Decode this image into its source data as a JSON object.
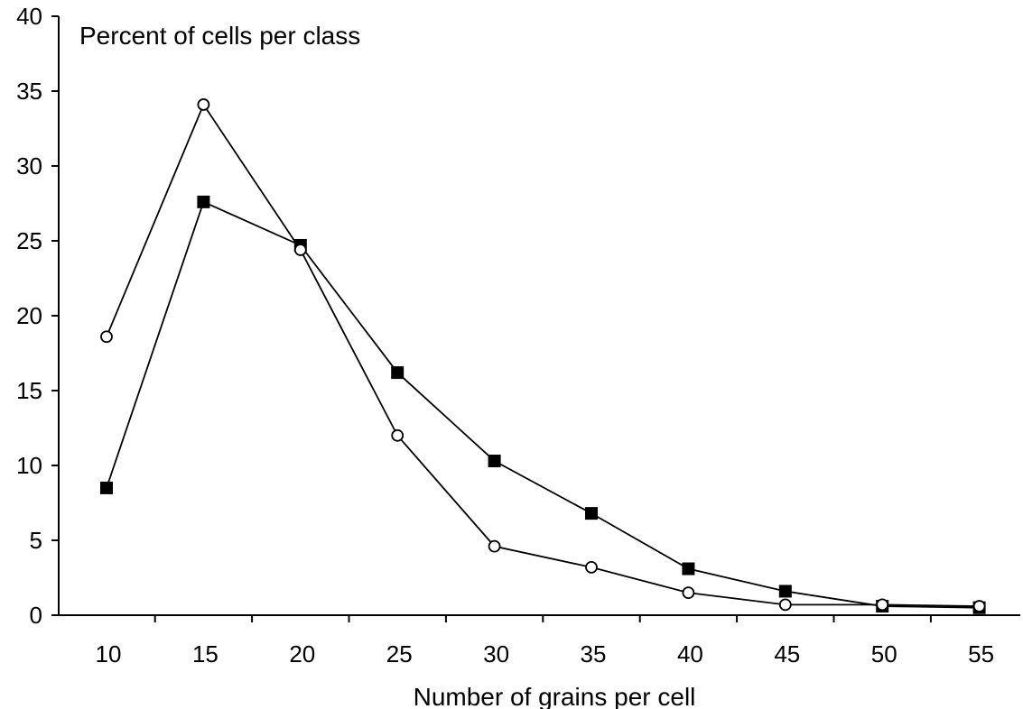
{
  "chart_data": {
    "type": "line",
    "title": "",
    "ylabel": "Percent of cells per class",
    "xlabel": "Number of grains per cell",
    "x": [
      10,
      15,
      20,
      25,
      30,
      35,
      40,
      45,
      50,
      55
    ],
    "x_tick_labels": [
      "10",
      "15",
      "20",
      "25",
      "30",
      "35",
      "40",
      "45",
      "50",
      "55"
    ],
    "y_tick_labels": [
      "0",
      "5",
      "10",
      "15",
      "20",
      "25",
      "30",
      "35",
      "40"
    ],
    "ylim": [
      0,
      40
    ],
    "grid": false,
    "legend": "none",
    "series": [
      {
        "marker": "open-circle",
        "color": "#000000",
        "values": [
          18.6,
          34.1,
          24.4,
          12.0,
          4.6,
          3.2,
          1.5,
          0.7,
          0.7,
          0.6
        ]
      },
      {
        "marker": "filled-square",
        "color": "#000000",
        "values": [
          8.5,
          27.6,
          24.7,
          16.2,
          10.3,
          6.8,
          3.1,
          1.6,
          0.6,
          0.5
        ]
      }
    ]
  }
}
